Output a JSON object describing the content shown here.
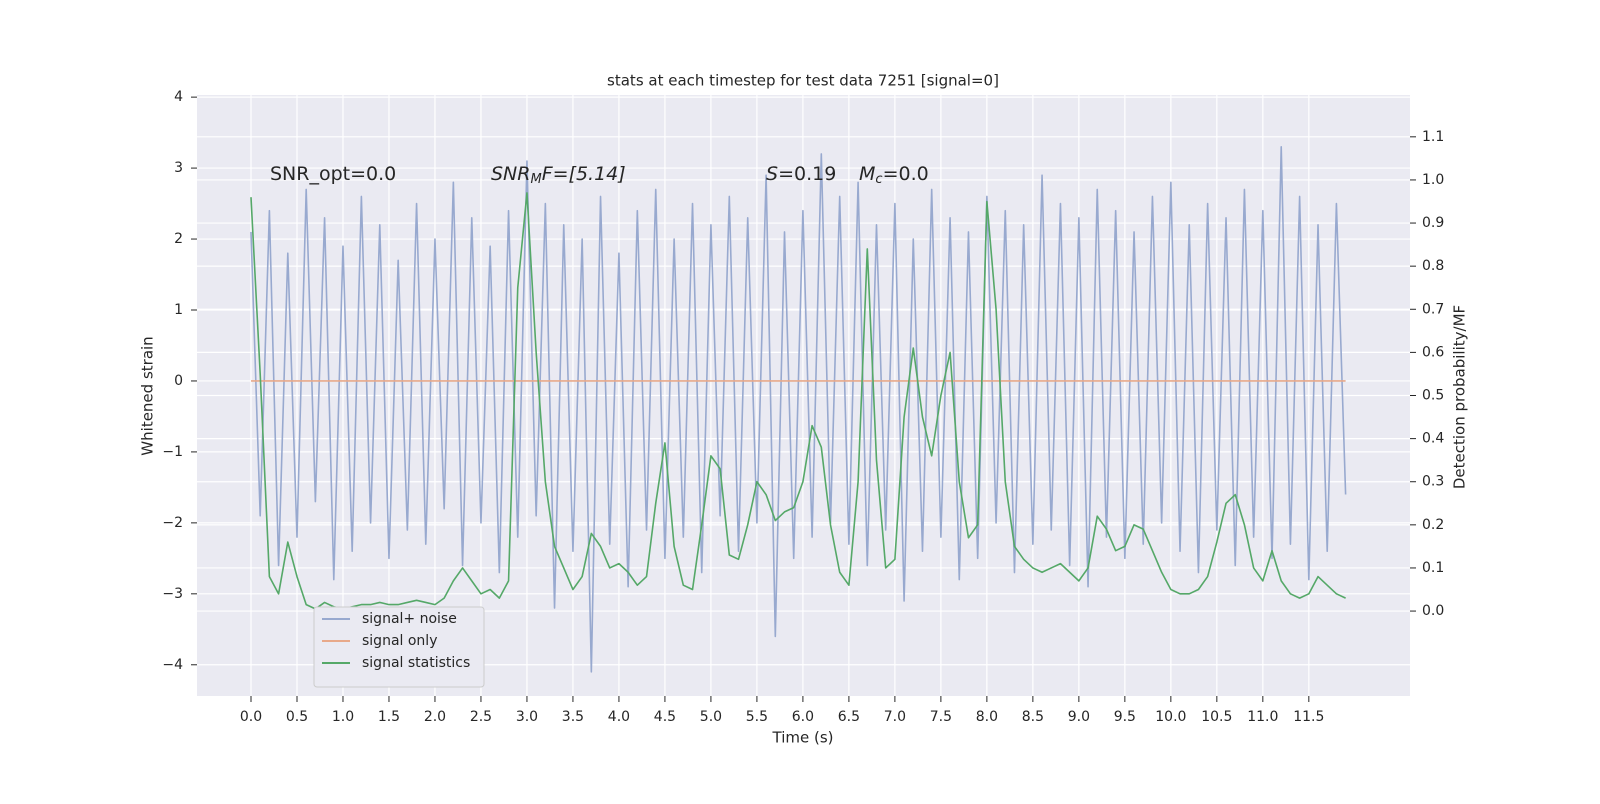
{
  "chart_data": {
    "type": "line",
    "title": "stats at each timestep for test data 7251 [signal=0]",
    "xlabel": "Time (s)",
    "ylabel": "Whitened strain",
    "y2label": "Detection probability/MF",
    "annotations": [
      [
        "SNR_opt=0.0"
      ],
      [
        "SNR",
        "M",
        "F=[5.14]"
      ],
      [
        "S",
        "=0.19"
      ],
      [
        "M",
        "c",
        "=0.0"
      ]
    ],
    "x": [
      0.0,
      0.1,
      0.2,
      0.3,
      0.4,
      0.5,
      0.6,
      0.7,
      0.8,
      0.9,
      1.0,
      1.1,
      1.2,
      1.3,
      1.4,
      1.5,
      1.6,
      1.7,
      1.8,
      1.9,
      2.0,
      2.1,
      2.2,
      2.3,
      2.4,
      2.5,
      2.6,
      2.7,
      2.8,
      2.9,
      3.0,
      3.1,
      3.2,
      3.3,
      3.4,
      3.5,
      3.6,
      3.7,
      3.8,
      3.9,
      4.0,
      4.1,
      4.2,
      4.3,
      4.4,
      4.5,
      4.6,
      4.7,
      4.8,
      4.9,
      5.0,
      5.1,
      5.2,
      5.3,
      5.4,
      5.5,
      5.6,
      5.7,
      5.8,
      5.9,
      6.0,
      6.1,
      6.2,
      6.3,
      6.4,
      6.5,
      6.6,
      6.7,
      6.8,
      6.9,
      7.0,
      7.1,
      7.2,
      7.3,
      7.4,
      7.5,
      7.6,
      7.7,
      7.8,
      7.9,
      8.0,
      8.1,
      8.2,
      8.3,
      8.4,
      8.5,
      8.6,
      8.7,
      8.8,
      8.9,
      9.0,
      9.1,
      9.2,
      9.3,
      9.4,
      9.5,
      9.6,
      9.7,
      9.8,
      9.9,
      10.0,
      10.1,
      10.2,
      10.3,
      10.4,
      10.5,
      10.6,
      10.7,
      10.8,
      10.9,
      11.0,
      11.1,
      11.2,
      11.3,
      11.4,
      11.5,
      11.6,
      11.7,
      11.8,
      11.9
    ],
    "series": [
      {
        "name": "signal+ noise",
        "color": "#98a9cf",
        "values": [
          2.1,
          -1.9,
          2.4,
          -2.6,
          1.8,
          -2.2,
          2.7,
          -1.7,
          2.3,
          -2.8,
          1.9,
          -2.4,
          2.6,
          -2.0,
          2.2,
          -2.5,
          1.7,
          -2.1,
          2.5,
          -2.3,
          2.0,
          -1.8,
          2.8,
          -2.6,
          2.3,
          -2.0,
          1.9,
          -2.7,
          2.4,
          -2.2,
          3.1,
          -1.9,
          2.5,
          -3.2,
          2.2,
          -2.4,
          2.0,
          -4.1,
          2.6,
          -2.3,
          1.8,
          -2.9,
          2.4,
          -2.1,
          2.7,
          -2.5,
          2.0,
          -2.2,
          2.5,
          -2.7,
          2.2,
          -1.9,
          2.6,
          -2.4,
          2.3,
          -2.0,
          2.9,
          -3.6,
          2.1,
          -2.5,
          2.4,
          -2.2,
          3.2,
          -2.0,
          2.6,
          -2.3,
          2.8,
          -2.6,
          2.2,
          -2.1,
          2.5,
          -3.1,
          2.0,
          -2.4,
          2.7,
          -2.2,
          2.3,
          -2.8,
          2.1,
          -2.5,
          2.6,
          -2.0,
          2.4,
          -2.7,
          2.2,
          -2.3,
          2.9,
          -2.1,
          2.5,
          -2.6,
          2.3,
          -2.9,
          2.7,
          -2.2,
          2.4,
          -2.5,
          2.1,
          -2.3,
          2.6,
          -2.0,
          2.8,
          -2.4,
          2.2,
          -2.7,
          2.5,
          -2.1,
          2.3,
          -2.6,
          2.7,
          -2.2,
          2.4,
          -2.5,
          3.3,
          -2.3,
          2.6,
          -2.8,
          2.2,
          -2.4,
          2.5,
          -1.6
        ]
      },
      {
        "name": "signal only",
        "color": "#e8a98a",
        "values": [
          0,
          0,
          0,
          0,
          0,
          0,
          0,
          0,
          0,
          0,
          0,
          0,
          0,
          0,
          0,
          0,
          0,
          0,
          0,
          0,
          0,
          0,
          0,
          0,
          0,
          0,
          0,
          0,
          0,
          0,
          0,
          0,
          0,
          0,
          0,
          0,
          0,
          0,
          0,
          0,
          0,
          0,
          0,
          0,
          0,
          0,
          0,
          0,
          0,
          0,
          0,
          0,
          0,
          0,
          0,
          0,
          0,
          0,
          0,
          0,
          0,
          0,
          0,
          0,
          0,
          0,
          0,
          0,
          0,
          0,
          0,
          0,
          0,
          0,
          0,
          0,
          0,
          0,
          0,
          0,
          0,
          0,
          0,
          0,
          0,
          0,
          0,
          0,
          0,
          0,
          0,
          0,
          0,
          0,
          0,
          0,
          0,
          0,
          0,
          0,
          0,
          0,
          0,
          0,
          0,
          0,
          0,
          0,
          0,
          0,
          0,
          0,
          0,
          0,
          0,
          0,
          0,
          0,
          0,
          0
        ]
      },
      {
        "name": "signal statistics",
        "color": "#55a868",
        "axis": "y2",
        "values": [
          0.96,
          0.55,
          0.08,
          0.04,
          0.16,
          0.08,
          0.015,
          0.005,
          0.02,
          0.01,
          0.005,
          0.01,
          0.015,
          0.015,
          0.02,
          0.015,
          0.015,
          0.02,
          0.025,
          0.02,
          0.015,
          0.03,
          0.07,
          0.1,
          0.07,
          0.04,
          0.05,
          0.03,
          0.07,
          0.75,
          0.97,
          0.6,
          0.3,
          0.15,
          0.1,
          0.05,
          0.08,
          0.18,
          0.15,
          0.1,
          0.11,
          0.09,
          0.06,
          0.08,
          0.25,
          0.39,
          0.15,
          0.06,
          0.05,
          0.2,
          0.36,
          0.33,
          0.13,
          0.12,
          0.2,
          0.3,
          0.27,
          0.21,
          0.23,
          0.24,
          0.3,
          0.43,
          0.38,
          0.2,
          0.09,
          0.06,
          0.3,
          0.84,
          0.35,
          0.1,
          0.12,
          0.45,
          0.61,
          0.45,
          0.36,
          0.5,
          0.6,
          0.3,
          0.17,
          0.2,
          0.95,
          0.7,
          0.3,
          0.15,
          0.12,
          0.1,
          0.09,
          0.1,
          0.11,
          0.09,
          0.07,
          0.1,
          0.22,
          0.19,
          0.14,
          0.15,
          0.2,
          0.19,
          0.14,
          0.09,
          0.05,
          0.04,
          0.04,
          0.05,
          0.08,
          0.16,
          0.25,
          0.27,
          0.2,
          0.1,
          0.07,
          0.14,
          0.07,
          0.04,
          0.03,
          0.04,
          0.08,
          0.06,
          0.04,
          0.03
        ]
      }
    ],
    "xlim": [
      -0.587,
      12.6
    ],
    "ylim": [
      -4.44,
      4.03
    ],
    "y2lim": [
      -0.197,
      1.197
    ],
    "xticks": [
      {
        "value": 0,
        "label": "0.0"
      },
      0.5,
      {
        "value": 1,
        "label": "1.0"
      },
      1.5,
      {
        "value": 2,
        "label": "2.0"
      },
      2.5,
      {
        "value": 3,
        "label": "3.0"
      },
      3.5,
      {
        "value": 4,
        "label": "4.0"
      },
      4.5,
      {
        "value": 5,
        "label": "5.0"
      },
      5.5,
      {
        "value": 6,
        "label": "6.0"
      },
      6.5,
      {
        "value": 7,
        "label": "7.0"
      },
      7.5,
      {
        "value": 8,
        "label": "8.0"
      },
      8.5,
      {
        "value": 9,
        "label": "9.0"
      },
      9.5,
      {
        "value": 10,
        "label": "10.0"
      },
      10.5,
      {
        "value": 11,
        "label": "11.0"
      },
      11.5
    ],
    "yticks": [
      {
        "value": -4,
        "label": "−4"
      },
      {
        "value": -3,
        "label": "−3"
      },
      {
        "value": -2,
        "label": "−2"
      },
      {
        "value": -1,
        "label": "−1"
      },
      0,
      1,
      2,
      3,
      4
    ],
    "y2ticks": [
      {
        "value": 0,
        "label": "0.0"
      },
      0.1,
      0.2,
      0.3,
      0.4,
      0.5,
      0.6,
      0.7,
      0.8,
      0.9,
      {
        "value": 1,
        "label": "1.0"
      },
      1.1
    ],
    "grid": true,
    "legend": "lower left",
    "background": "#eaeaf2"
  }
}
